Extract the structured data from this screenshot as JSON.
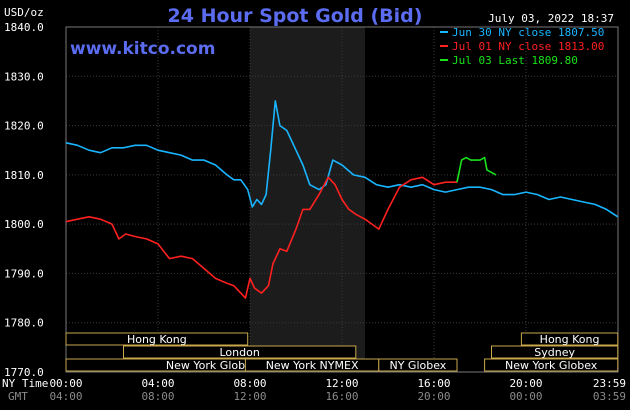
{
  "header": {
    "title": "24 Hour Spot Gold (Bid)",
    "unit": "USD/oz",
    "date": "July 03, 2022 18:37",
    "website": "www.kitco.com"
  },
  "legend": [
    {
      "label": "Jun 30 NY close 1807.50",
      "color": "#19b5ff"
    },
    {
      "label": "Jul 01 NY close 1813.00",
      "color": "#ff2020"
    },
    {
      "label": "Jul 03 Last 1809.80",
      "color": "#19e319"
    }
  ],
  "time_axis": {
    "ny_label": "NY Time",
    "gmt_label": "GMT",
    "ny_ticks": [
      "00:00",
      "04:00",
      "08:00",
      "12:00",
      "16:00",
      "20:00",
      "23:59"
    ],
    "gmt_ticks": [
      "04:00",
      "08:00",
      "12:00",
      "16:00",
      "20:00",
      "00:00",
      "03:59"
    ]
  },
  "sessions": [
    {
      "label": "Hong Kong",
      "start": 0,
      "end": 7.9,
      "row": 0
    },
    {
      "label": "London",
      "start": 2.5,
      "end": 12.6,
      "row": 1
    },
    {
      "label": "New York Globex",
      "start": 0,
      "end": 12.7,
      "row": 2
    },
    {
      "label": "New York NYMEX",
      "start": 7.8,
      "end": 13.6,
      "row": 2
    },
    {
      "label": "NY Globex",
      "start": 13.6,
      "end": 17.0,
      "row": 2
    },
    {
      "label": "Hong Kong",
      "start": 19.8,
      "end": 23.99,
      "row": 0
    },
    {
      "label": "Sydney",
      "start": 18.5,
      "end": 23.99,
      "row": 1
    },
    {
      "label": "New York Globex",
      "start": 18.2,
      "end": 23.99,
      "row": 2
    }
  ],
  "chart_data": {
    "type": "line",
    "xlim": [
      0,
      24
    ],
    "ylim": [
      1770,
      1840
    ],
    "y_ticks": [
      1770,
      1780,
      1790,
      1800,
      1810,
      1820,
      1830,
      1840
    ],
    "y_tick_labels": [
      "1770.0",
      "1780.0",
      "1790.0",
      "1800.0",
      "1810.0",
      "1820.0",
      "1830.0",
      "1840.0"
    ],
    "grid": true,
    "highlight_range": [
      8,
      13
    ],
    "series": [
      {
        "name": "Jun 30 NY close 1807.50",
        "color": "#19b5ff",
        "x": [
          0,
          0.5,
          1,
          1.5,
          2,
          2.5,
          3,
          3.5,
          4,
          4.5,
          5,
          5.5,
          6,
          6.5,
          7,
          7.3,
          7.6,
          7.9,
          8.1,
          8.3,
          8.5,
          8.7,
          8.9,
          9.1,
          9.3,
          9.6,
          10,
          10.3,
          10.6,
          11,
          11.3,
          11.6,
          12,
          12.5,
          13,
          13.5,
          14,
          14.5,
          15,
          15.5,
          16,
          16.5,
          17,
          17.5,
          18,
          18.5,
          19,
          19.5,
          20,
          20.5,
          21,
          21.5,
          22,
          22.5,
          23,
          23.5,
          23.99
        ],
        "values": [
          1816.5,
          1816.0,
          1815.0,
          1814.5,
          1815.5,
          1815.5,
          1816.0,
          1816.0,
          1815.0,
          1814.5,
          1814.0,
          1813.0,
          1813.0,
          1812.0,
          1810.0,
          1809.0,
          1809.0,
          1807.0,
          1803.5,
          1805.0,
          1804.0,
          1806.0,
          1815.0,
          1825.0,
          1820.0,
          1819.0,
          1815.0,
          1812.0,
          1808.0,
          1807.0,
          1808.0,
          1813.0,
          1812.0,
          1810.0,
          1809.5,
          1808.0,
          1807.5,
          1808.0,
          1807.5,
          1808.0,
          1807.0,
          1806.5,
          1807.0,
          1807.5,
          1807.5,
          1807.0,
          1806.0,
          1806.0,
          1806.5,
          1806.0,
          1805.0,
          1805.5,
          1805.0,
          1804.5,
          1804.0,
          1803.0,
          1801.5
        ]
      },
      {
        "name": "Jul 01 NY close 1813.00",
        "color": "#ff2020",
        "x": [
          0,
          0.5,
          1,
          1.5,
          2,
          2.3,
          2.6,
          3,
          3.5,
          4,
          4.5,
          5,
          5.5,
          6,
          6.5,
          7,
          7.3,
          7.6,
          7.8,
          8.0,
          8.2,
          8.5,
          8.8,
          9.0,
          9.3,
          9.6,
          10,
          10.3,
          10.6,
          11,
          11.4,
          11.7,
          12,
          12.3,
          12.6,
          13,
          13.3,
          13.6,
          14,
          14.5,
          15,
          15.5,
          16,
          16.5,
          17
        ],
        "values": [
          1800.5,
          1801.0,
          1801.5,
          1801.0,
          1800.0,
          1797.0,
          1798.0,
          1797.5,
          1797.0,
          1796.0,
          1793.0,
          1793.5,
          1793.0,
          1791.0,
          1789.0,
          1788.0,
          1787.5,
          1786.0,
          1785.0,
          1789.0,
          1787.0,
          1786.0,
          1787.5,
          1792.0,
          1795.0,
          1794.5,
          1799.0,
          1803.0,
          1803.0,
          1806.0,
          1809.5,
          1808.0,
          1805.0,
          1803.0,
          1802.0,
          1801.0,
          1800.0,
          1799.0,
          1803.0,
          1807.5,
          1809.0,
          1809.5,
          1808.0,
          1808.5,
          1808.5
        ]
      },
      {
        "name": "Jul 03 Last 1809.80",
        "color": "#19e319",
        "x": [
          17,
          17.2,
          17.4,
          17.6,
          17.8,
          18.0,
          18.2,
          18.3,
          18.5,
          18.7
        ],
        "values": [
          1808.5,
          1813.0,
          1813.5,
          1813.0,
          1813.0,
          1813.0,
          1813.5,
          1811.0,
          1810.5,
          1810.0
        ]
      }
    ]
  }
}
